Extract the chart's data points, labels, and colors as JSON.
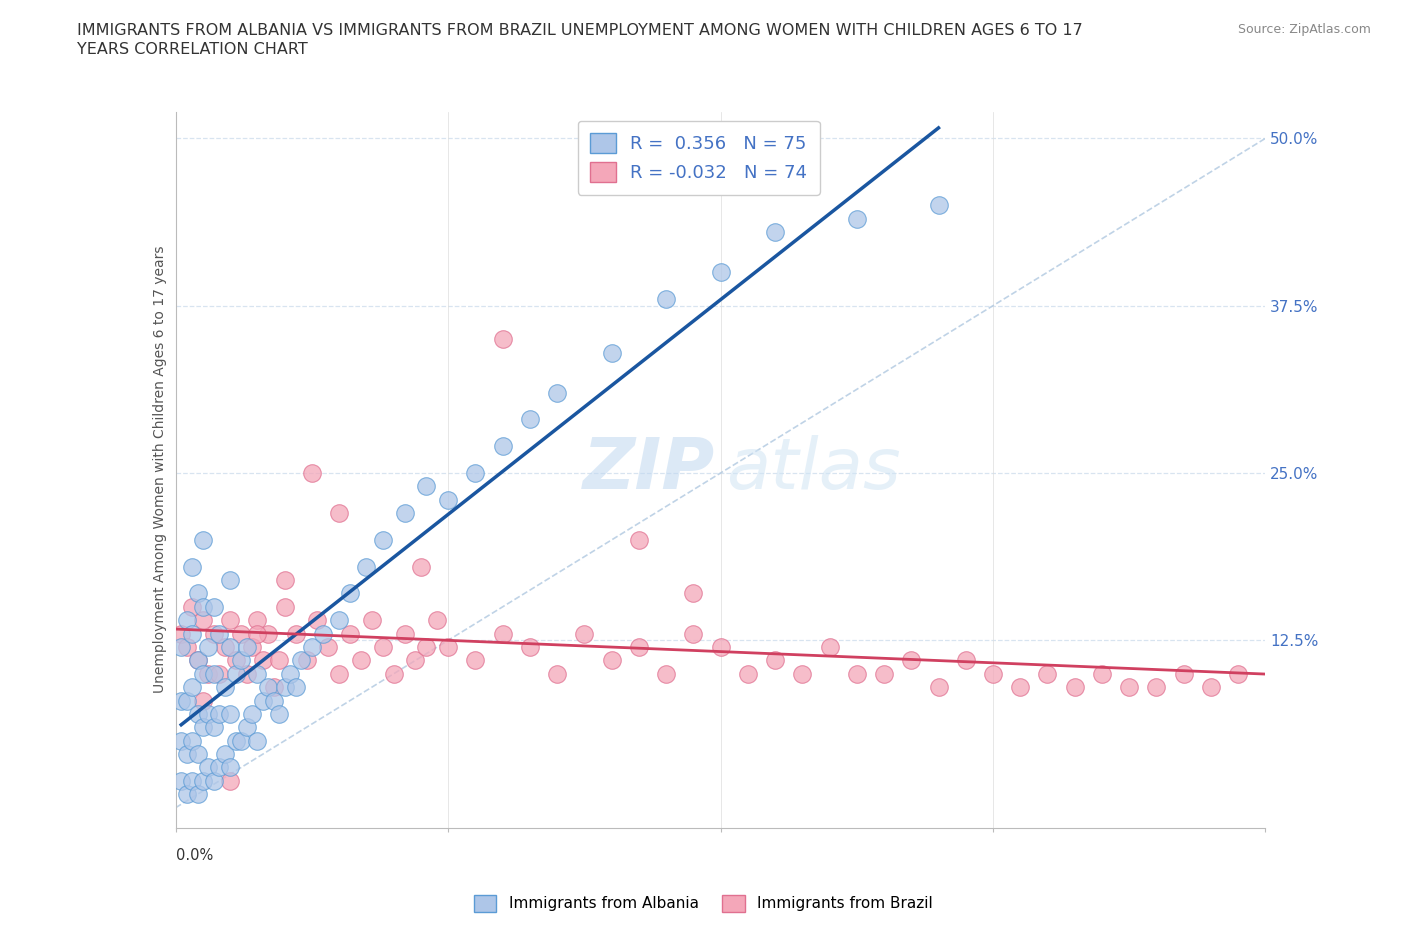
{
  "title_line1": "IMMIGRANTS FROM ALBANIA VS IMMIGRANTS FROM BRAZIL UNEMPLOYMENT AMONG WOMEN WITH CHILDREN AGES 6 TO 17",
  "title_line2": "YEARS CORRELATION CHART",
  "ylabel": "Unemployment Among Women with Children Ages 6 to 17 years",
  "source": "Source: ZipAtlas.com",
  "watermark_zip": "ZIP",
  "watermark_atlas": "atlas",
  "xlim": [
    0.0,
    0.2
  ],
  "ylim": [
    -0.015,
    0.52
  ],
  "ytick_vals": [
    0.0,
    0.125,
    0.25,
    0.375,
    0.5
  ],
  "ytick_labels_right": [
    "",
    "12.5%",
    "25.0%",
    "37.5%",
    "50.0%"
  ],
  "albania_color": "#aec6e8",
  "brazil_color": "#f4a7b9",
  "albania_edge": "#5b9bd5",
  "brazil_edge": "#e07090",
  "regression_albania_color": "#1a56a0",
  "regression_brazil_color": "#d04060",
  "diagonal_color": "#b0c8e0",
  "grid_color": "#d8e4f0",
  "R_albania": 0.356,
  "N_albania": 75,
  "R_brazil": -0.032,
  "N_brazil": 74,
  "legend_R_color": "#4472c4",
  "legend_N_color": "#333333",
  "albania_x": [
    0.001,
    0.001,
    0.001,
    0.001,
    0.002,
    0.002,
    0.002,
    0.002,
    0.003,
    0.003,
    0.003,
    0.003,
    0.003,
    0.004,
    0.004,
    0.004,
    0.004,
    0.004,
    0.005,
    0.005,
    0.005,
    0.005,
    0.005,
    0.006,
    0.006,
    0.006,
    0.007,
    0.007,
    0.007,
    0.007,
    0.008,
    0.008,
    0.008,
    0.009,
    0.009,
    0.01,
    0.01,
    0.01,
    0.01,
    0.011,
    0.011,
    0.012,
    0.012,
    0.013,
    0.013,
    0.014,
    0.015,
    0.015,
    0.016,
    0.017,
    0.018,
    0.019,
    0.02,
    0.021,
    0.022,
    0.023,
    0.025,
    0.027,
    0.03,
    0.032,
    0.035,
    0.038,
    0.042,
    0.046,
    0.05,
    0.055,
    0.06,
    0.065,
    0.07,
    0.08,
    0.09,
    0.1,
    0.11,
    0.125,
    0.14
  ],
  "albania_y": [
    0.02,
    0.05,
    0.08,
    0.12,
    0.01,
    0.04,
    0.08,
    0.14,
    0.02,
    0.05,
    0.09,
    0.13,
    0.18,
    0.01,
    0.04,
    0.07,
    0.11,
    0.16,
    0.02,
    0.06,
    0.1,
    0.15,
    0.2,
    0.03,
    0.07,
    0.12,
    0.02,
    0.06,
    0.1,
    0.15,
    0.03,
    0.07,
    0.13,
    0.04,
    0.09,
    0.03,
    0.07,
    0.12,
    0.17,
    0.05,
    0.1,
    0.05,
    0.11,
    0.06,
    0.12,
    0.07,
    0.05,
    0.1,
    0.08,
    0.09,
    0.08,
    0.07,
    0.09,
    0.1,
    0.09,
    0.11,
    0.12,
    0.13,
    0.14,
    0.16,
    0.18,
    0.2,
    0.22,
    0.24,
    0.23,
    0.25,
    0.27,
    0.29,
    0.31,
    0.34,
    0.38,
    0.4,
    0.43,
    0.44,
    0.45
  ],
  "brazil_x": [
    0.001,
    0.002,
    0.003,
    0.004,
    0.005,
    0.006,
    0.007,
    0.008,
    0.009,
    0.01,
    0.011,
    0.012,
    0.013,
    0.014,
    0.015,
    0.016,
    0.017,
    0.018,
    0.019,
    0.02,
    0.022,
    0.024,
    0.026,
    0.028,
    0.03,
    0.032,
    0.034,
    0.036,
    0.038,
    0.04,
    0.042,
    0.044,
    0.046,
    0.048,
    0.05,
    0.055,
    0.06,
    0.065,
    0.07,
    0.075,
    0.08,
    0.085,
    0.09,
    0.095,
    0.1,
    0.105,
    0.11,
    0.115,
    0.12,
    0.125,
    0.13,
    0.135,
    0.14,
    0.145,
    0.15,
    0.155,
    0.16,
    0.165,
    0.17,
    0.175,
    0.18,
    0.185,
    0.19,
    0.195,
    0.085,
    0.06,
    0.095,
    0.045,
    0.03,
    0.02,
    0.025,
    0.015,
    0.01,
    0.005
  ],
  "brazil_y": [
    0.13,
    0.12,
    0.15,
    0.11,
    0.14,
    0.1,
    0.13,
    0.1,
    0.12,
    0.14,
    0.11,
    0.13,
    0.1,
    0.12,
    0.14,
    0.11,
    0.13,
    0.09,
    0.11,
    0.15,
    0.13,
    0.11,
    0.14,
    0.12,
    0.1,
    0.13,
    0.11,
    0.14,
    0.12,
    0.1,
    0.13,
    0.11,
    0.12,
    0.14,
    0.12,
    0.11,
    0.13,
    0.12,
    0.1,
    0.13,
    0.11,
    0.12,
    0.1,
    0.13,
    0.12,
    0.1,
    0.11,
    0.1,
    0.12,
    0.1,
    0.1,
    0.11,
    0.09,
    0.11,
    0.1,
    0.09,
    0.1,
    0.09,
    0.1,
    0.09,
    0.09,
    0.1,
    0.09,
    0.1,
    0.2,
    0.35,
    0.16,
    0.18,
    0.22,
    0.17,
    0.25,
    0.13,
    0.02,
    0.08
  ]
}
